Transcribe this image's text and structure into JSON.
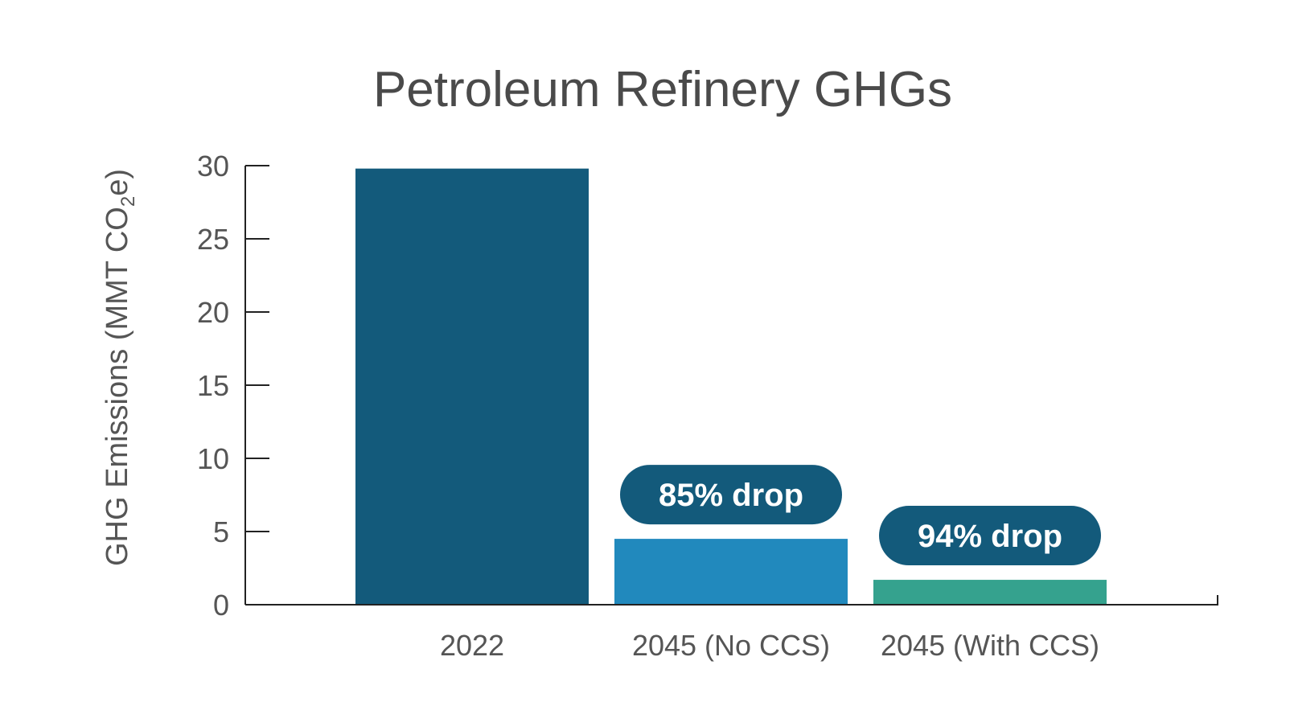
{
  "chart_data": {
    "type": "bar",
    "title": "Petroleum Refinery GHGs",
    "ylabel": {
      "main": "GHG Emissions (MMT CO",
      "subscript": "2",
      "suffix": "e)"
    },
    "xlabel": "",
    "categories": [
      "2022",
      "2045 (No CCS)",
      "2045 (With CCS)"
    ],
    "values": [
      29.8,
      4.5,
      1.7
    ],
    "colors": [
      "#135a7b",
      "#2189bd",
      "#35a28e"
    ],
    "ylim": [
      0,
      30
    ],
    "yticks": [
      0,
      5,
      10,
      15,
      20,
      25,
      30
    ],
    "grid": false,
    "annotations": [
      {
        "category_index": 1,
        "text": "85% drop",
        "color": "#135a7b"
      },
      {
        "category_index": 2,
        "text": "94% drop",
        "color": "#135a7b"
      }
    ]
  }
}
